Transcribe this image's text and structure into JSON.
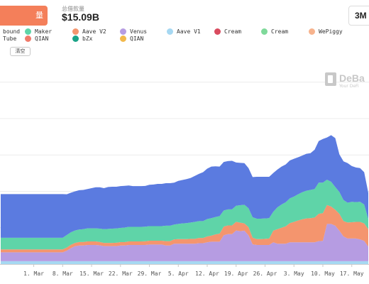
{
  "header": {
    "metric_button_label": "量",
    "metric_caret": "▾",
    "total_label": "总借款量",
    "total_value": "$15.09B",
    "range_button_label": "3M"
  },
  "legend": [
    {
      "label": "bound",
      "color": "#5b7be0"
    },
    {
      "label": "Maker",
      "color": "#5fd4a8"
    },
    {
      "label": "Aave V2",
      "color": "#f4956e"
    },
    {
      "label": "Venus",
      "color": "#b69ce2"
    },
    {
      "label": "Aave V1",
      "color": "#a6d8f2"
    },
    {
      "label": "Cream",
      "color": "#d94b5f"
    },
    {
      "label": "Cream",
      "color": "#7fd99a"
    },
    {
      "label": "WePiggy",
      "color": "#f7b38d"
    },
    {
      "label": "Tube",
      "color": "#f0b090"
    },
    {
      "label": "QIAN",
      "color": "#f07a6a"
    },
    {
      "label": "bZx",
      "color": "#1aa387"
    },
    {
      "label": "QIAN",
      "color": "#f2b84b"
    }
  ],
  "clear_button_label": "清空",
  "watermark": {
    "brand": "DeBa",
    "tagline": "Your DeFi"
  },
  "chart_data": {
    "type": "area",
    "stacked": true,
    "x": [
      "Feb 21",
      "Feb 22",
      "Feb 23",
      "Feb 24",
      "Feb 25",
      "Feb 26",
      "Feb 27",
      "Feb 28",
      "Mar 1",
      "Mar 2",
      "Mar 3",
      "Mar 4",
      "Mar 5",
      "Mar 6",
      "Mar 7",
      "Mar 8",
      "Mar 9",
      "Mar 10",
      "Mar 11",
      "Mar 12",
      "Mar 13",
      "Mar 14",
      "Mar 15",
      "Mar 16",
      "Mar 17",
      "Mar 18",
      "Mar 19",
      "Mar 20",
      "Mar 21",
      "Mar 22",
      "Mar 23",
      "Mar 24",
      "Mar 25",
      "Mar 26",
      "Mar 27",
      "Mar 28",
      "Mar 29",
      "Mar 30",
      "Mar 31",
      "Apr 1",
      "Apr 2",
      "Apr 3",
      "Apr 4",
      "Apr 5",
      "Apr 6",
      "Apr 7",
      "Apr 8",
      "Apr 9",
      "Apr 10",
      "Apr 11",
      "Apr 12",
      "Apr 13",
      "Apr 14",
      "Apr 15",
      "Apr 16",
      "Apr 17",
      "Apr 18",
      "Apr 19",
      "Apr 20",
      "Apr 21",
      "Apr 22",
      "Apr 23",
      "Apr 24",
      "Apr 25",
      "Apr 26",
      "Apr 27",
      "Apr 28",
      "Apr 29",
      "Apr 30",
      "May 1",
      "May 2",
      "May 3",
      "May 4",
      "May 5",
      "May 6",
      "May 7",
      "May 8",
      "May 9",
      "May 10",
      "May 11",
      "May 12",
      "May 13",
      "May 14",
      "May 15",
      "May 16",
      "May 17",
      "May 18",
      "May 19",
      "May 20",
      "May 21"
    ],
    "x_ticks": [
      "1. Mar",
      "8. Mar",
      "15. Mar",
      "22. Mar",
      "29. Mar",
      "5. Apr",
      "12. Apr",
      "19. Apr",
      "26. Apr",
      "3. May",
      "10. May",
      "17. May"
    ],
    "series": [
      {
        "name": "Aave V1",
        "color": "#a6d8f2",
        "values": [
          0.2,
          0.2,
          0.2,
          0.2,
          0.2,
          0.2,
          0.2,
          0.2,
          0.2,
          0.2,
          0.2,
          0.2,
          0.2,
          0.2,
          0.2,
          0.2,
          0.2,
          0.2,
          0.2,
          0.2,
          0.2,
          0.2,
          0.2,
          0.2,
          0.2,
          0.2,
          0.2,
          0.2,
          0.2,
          0.2,
          0.2,
          0.2,
          0.2,
          0.2,
          0.2,
          0.2,
          0.2,
          0.2,
          0.2,
          0.2,
          0.2,
          0.2,
          0.2,
          0.2,
          0.2,
          0.2,
          0.2,
          0.2,
          0.2,
          0.2,
          0.2,
          0.2,
          0.2,
          0.2,
          0.2,
          0.2,
          0.2,
          0.2,
          0.2,
          0.2,
          0.2,
          0.2,
          0.2,
          0.2,
          0.2,
          0.2,
          0.2,
          0.2,
          0.2,
          0.2,
          0.2,
          0.2,
          0.2,
          0.2,
          0.2,
          0.2,
          0.2,
          0.2,
          0.2,
          0.2,
          0.2,
          0.2,
          0.2,
          0.2,
          0.2,
          0.2,
          0.2,
          0.2,
          0.2,
          0.2
        ]
      },
      {
        "name": "Venus",
        "color": "#b69ce2",
        "values": [
          0.61,
          0.61,
          0.61,
          0.61,
          0.61,
          0.61,
          0.61,
          0.61,
          0.61,
          0.61,
          0.61,
          0.61,
          0.61,
          0.61,
          0.61,
          0.61,
          0.72,
          0.9,
          1.03,
          1.08,
          1.08,
          1.12,
          1.12,
          1.12,
          1.09,
          1.04,
          1.04,
          1.04,
          1.04,
          1.08,
          1.08,
          1.12,
          1.12,
          1.12,
          1.12,
          1.12,
          1.15,
          1.15,
          1.15,
          1.15,
          1.08,
          1.08,
          1.2,
          1.2,
          1.2,
          1.2,
          1.2,
          1.2,
          1.24,
          1.24,
          1.3,
          1.34,
          1.34,
          1.34,
          1.78,
          1.86,
          1.86,
          2.11,
          2.06,
          2.1,
          1.78,
          1.16,
          1.12,
          1.12,
          1.12,
          1.12,
          1.3,
          1.2,
          1.2,
          1.2,
          1.3,
          1.3,
          1.3,
          1.3,
          1.3,
          1.3,
          1.3,
          1.38,
          1.4,
          2.56,
          2.56,
          2.44,
          2.1,
          1.7,
          1.56,
          1.56,
          1.56,
          1.5,
          1.4,
          1.0
        ]
      },
      {
        "name": "Aave V2",
        "color": "#f4956e",
        "values": [
          0.2,
          0.2,
          0.2,
          0.2,
          0.2,
          0.2,
          0.2,
          0.2,
          0.2,
          0.2,
          0.2,
          0.2,
          0.2,
          0.2,
          0.2,
          0.2,
          0.22,
          0.23,
          0.23,
          0.24,
          0.24,
          0.24,
          0.24,
          0.24,
          0.23,
          0.22,
          0.22,
          0.22,
          0.23,
          0.23,
          0.23,
          0.24,
          0.24,
          0.24,
          0.24,
          0.25,
          0.26,
          0.26,
          0.26,
          0.26,
          0.3,
          0.3,
          0.3,
          0.32,
          0.32,
          0.32,
          0.34,
          0.34,
          0.36,
          0.36,
          0.4,
          0.42,
          0.5,
          0.56,
          0.6,
          0.6,
          0.6,
          0.6,
          0.59,
          0.5,
          0.56,
          0.46,
          0.4,
          0.4,
          0.42,
          0.44,
          0.8,
          1.0,
          1.1,
          1.2,
          1.32,
          1.4,
          1.5,
          1.58,
          1.64,
          1.66,
          1.7,
          1.88,
          1.9,
          1.3,
          1.2,
          1.1,
          1.16,
          1.06,
          1.1,
          1.12,
          1.14,
          1.2,
          1.2,
          1.2
        ]
      },
      {
        "name": "Maker",
        "color": "#5fd4a8",
        "values": [
          0.8,
          0.8,
          0.8,
          0.8,
          0.8,
          0.8,
          0.8,
          0.8,
          0.8,
          0.8,
          0.8,
          0.8,
          0.8,
          0.8,
          0.8,
          0.8,
          0.86,
          0.86,
          0.85,
          0.86,
          0.88,
          0.9,
          0.9,
          0.9,
          0.92,
          0.94,
          0.96,
          0.98,
          0.98,
          0.98,
          1.0,
          1.0,
          1.0,
          1.0,
          1.0,
          1.0,
          1.0,
          1.0,
          1.0,
          1.0,
          1.06,
          1.06,
          1.02,
          1.04,
          1.08,
          1.1,
          1.12,
          1.16,
          1.16,
          1.16,
          1.2,
          1.2,
          1.2,
          1.2,
          1.1,
          1.1,
          1.1,
          1.1,
          1.2,
          1.28,
          1.3,
          1.4,
          1.4,
          1.4,
          1.4,
          1.4,
          1.3,
          1.5,
          1.6,
          1.65,
          1.7,
          1.74,
          1.8,
          1.86,
          1.9,
          1.94,
          1.96,
          2.14,
          2.1,
          1.74,
          1.7,
          1.56,
          1.5,
          1.44,
          1.36,
          1.4,
          1.36,
          1.38,
          1.3,
          0.7
        ]
      },
      {
        "name": "bound",
        "color": "#5b7be0",
        "values": [
          3.0,
          3.0,
          3.0,
          3.0,
          3.0,
          3.0,
          3.0,
          3.0,
          3.0,
          3.0,
          3.0,
          3.0,
          3.0,
          3.0,
          3.0,
          3.0,
          2.8,
          2.72,
          2.69,
          2.7,
          2.7,
          2.7,
          2.76,
          2.82,
          2.84,
          2.82,
          2.88,
          2.88,
          2.87,
          2.87,
          2.87,
          2.84,
          2.8,
          2.8,
          2.8,
          2.8,
          2.84,
          2.86,
          2.9,
          2.9,
          2.92,
          2.92,
          2.88,
          2.96,
          2.98,
          3.02,
          3.06,
          3.16,
          3.24,
          3.36,
          3.46,
          3.54,
          3.48,
          3.4,
          3.34,
          3.32,
          3.34,
          2.97,
          2.91,
          2.86,
          2.76,
          2.76,
          2.88,
          2.88,
          2.86,
          2.84,
          2.66,
          2.6,
          2.6,
          2.6,
          2.6,
          2.6,
          2.54,
          2.52,
          2.54,
          2.52,
          2.7,
          2.86,
          3.0,
          2.9,
          3.2,
          3.36,
          2.58,
          2.66,
          2.72,
          2.46,
          2.38,
          2.32,
          2.22,
          1.8
        ]
      }
    ],
    "ylim": [
      0,
      14
    ],
    "y_gridlines": [
      0,
      2.5,
      5,
      7.5,
      10,
      12.5
    ],
    "grid": true,
    "legend_position": "top"
  }
}
